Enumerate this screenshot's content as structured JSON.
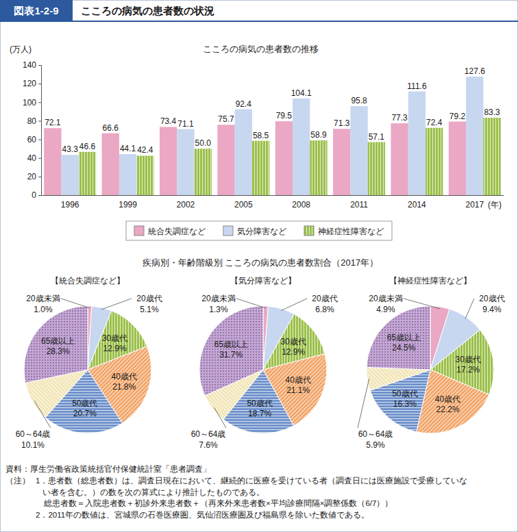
{
  "header": {
    "label": "図表1-2-9",
    "title": "こころの病気の患者数の状況"
  },
  "pie_section_title": "疾病別・年齢階級別 こころの病気の患者数割合（2017年）",
  "chart_data": [
    {
      "type": "bar",
      "title": "こころの病気の患者数の推移",
      "y_label": "(万人)",
      "x_label": "(年)",
      "categories": [
        "1996",
        "1999",
        "2002",
        "2005",
        "2008",
        "2011",
        "2014",
        "2017"
      ],
      "series": [
        {
          "name": "統合失調症など",
          "color": "#eaa8c4",
          "values": [
            72.1,
            66.6,
            73.4,
            75.7,
            79.5,
            71.3,
            77.3,
            79.2
          ]
        },
        {
          "name": "気分障害など",
          "color": "#c8d7f0",
          "values": [
            43.3,
            44.1,
            71.1,
            92.4,
            104.1,
            95.8,
            111.6,
            127.6
          ]
        },
        {
          "name": "神経症性障害など",
          "color": "#9cc04a",
          "values": [
            46.6,
            42.4,
            50.0,
            58.5,
            58.9,
            57.1,
            72.4,
            83.3
          ],
          "value_labels": [
            "46.6",
            "42.4",
            "50.0",
            "58.5",
            "58.9",
            "57.1",
            "72.4",
            "83.3"
          ]
        }
      ],
      "ylim": [
        0,
        140
      ],
      "yticks": [
        0,
        20,
        40,
        60,
        80,
        100,
        120,
        140
      ],
      "grid": false,
      "legend": "bottom",
      "data_labels": true
    },
    {
      "type": "pie",
      "title": "【統合失調症など】",
      "categories": [
        "20歳未満",
        "20歳代",
        "30歳代",
        "40歳代",
        "50歳代",
        "60～64歳",
        "65歳以上"
      ],
      "values": [
        1.0,
        5.1,
        12.9,
        21.8,
        20.7,
        10.1,
        28.3
      ],
      "value_labels": [
        "1.0%",
        "5.1%",
        "12.9%",
        "21.8%",
        "20.7%",
        "10.1%",
        "28.3%"
      ],
      "colors": [
        "#eaa8c4",
        "#c8d7f0",
        "#9cc04a",
        "#f2a66a",
        "#6f92cc",
        "#f2e6b8",
        "#c6a6d8"
      ],
      "data_labels": true
    },
    {
      "type": "pie",
      "title": "【気分障害など】",
      "categories": [
        "20歳未満",
        "20歳代",
        "30歳代",
        "40歳代",
        "50歳代",
        "60～64歳",
        "65歳以上"
      ],
      "values": [
        1.3,
        6.8,
        12.9,
        21.1,
        18.7,
        7.6,
        31.7
      ],
      "value_labels": [
        "1.3%",
        "6.8%",
        "12.9%",
        "21.1%",
        "18.7%",
        "7.6%",
        "31.7%"
      ],
      "colors": [
        "#eaa8c4",
        "#c8d7f0",
        "#9cc04a",
        "#f2a66a",
        "#6f92cc",
        "#f2e6b8",
        "#c6a6d8"
      ],
      "data_labels": true
    },
    {
      "type": "pie",
      "title": "【神経症性障害など】",
      "categories": [
        "20歳未満",
        "20歳代",
        "30歳代",
        "40歳代",
        "50歳代",
        "60～64歳",
        "65歳以上"
      ],
      "values": [
        4.9,
        9.4,
        17.2,
        22.2,
        16.3,
        5.9,
        24.5
      ],
      "value_labels": [
        "4.9%",
        "9.4%",
        "17.2%",
        "22.2%",
        "16.3%",
        "5.9%",
        "24.5%"
      ],
      "colors": [
        "#eaa8c4",
        "#c8d7f0",
        "#9cc04a",
        "#f2a66a",
        "#6f92cc",
        "#f2e6b8",
        "#c6a6d8"
      ],
      "data_labels": true
    }
  ],
  "source": "資料：厚生労働省政策統括官付保健統計室「患者調査」",
  "notes": {
    "label": "（注）",
    "lines": [
      "1．患者数（総患者数）は、調査日現在において、継続的に医療を受けている者（調査日には医療施設で受療していな",
      "い者を含む。）の数を次の算式により推計したものである。",
      "総患者数＝入院患者数＋初診外来患者数＋（再来外来患者数×平均診療間隔×調整係数（6/7））",
      "2．2011年の数値は、宮城県の石巻医療圏、気仙沼医療圏及び福島県を除いた数値である。"
    ]
  }
}
